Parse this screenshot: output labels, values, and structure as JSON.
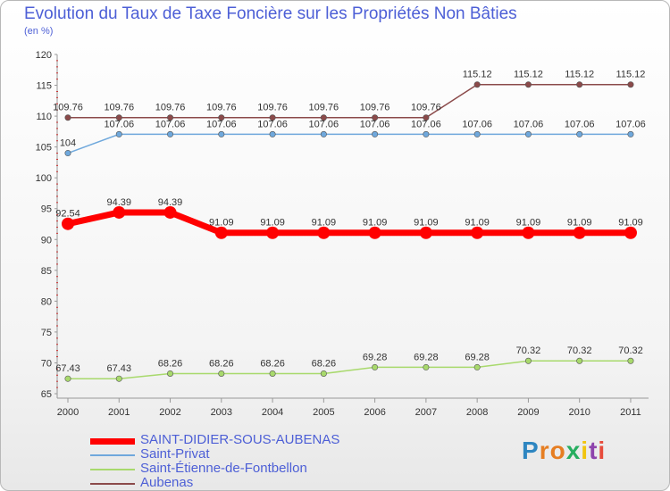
{
  "chart_data": {
    "type": "line",
    "title": "Evolution du Taux de Taxe Foncière sur les Propriétés Non Bâties",
    "ylabel": "(en %)",
    "xlabel": "",
    "categories": [
      "2000",
      "2001",
      "2002",
      "2003",
      "2004",
      "2005",
      "2006",
      "2007",
      "2008",
      "2009",
      "2010",
      "2011"
    ],
    "ylim": [
      65,
      120
    ],
    "yticks": [
      65,
      70,
      75,
      80,
      85,
      90,
      95,
      100,
      105,
      110,
      115,
      120
    ],
    "series": [
      {
        "name": "SAINT-DIDIER-SOUS-AUBENAS",
        "color": "#ff0000",
        "values": [
          92.54,
          94.39,
          94.39,
          91.09,
          91.09,
          91.09,
          91.09,
          91.09,
          91.09,
          91.09,
          91.09,
          91.09
        ],
        "labels": [
          "92.54",
          "94.39",
          "94.39",
          "91.09",
          "91.09",
          "91.09",
          "91.09",
          "91.09",
          "91.09",
          "91.09",
          "91.09",
          "91.09"
        ]
      },
      {
        "name": "Saint-Privat",
        "color": "#6fa8dc",
        "values": [
          104,
          107.06,
          107.06,
          107.06,
          107.06,
          107.06,
          107.06,
          107.06,
          107.06,
          107.06,
          107.06,
          107.06
        ],
        "labels": [
          "104",
          "107.06",
          "107.06",
          "107.06",
          "107.06",
          "107.06",
          "107.06",
          "107.06",
          "107.06",
          "107.06",
          "107.06",
          "107.06"
        ]
      },
      {
        "name": "Saint-Étienne-de-Fontbellon",
        "color": "#a8d96c",
        "values": [
          67.43,
          67.43,
          68.26,
          68.26,
          68.26,
          68.26,
          69.28,
          69.28,
          69.28,
          70.32,
          70.32,
          70.32
        ],
        "labels": [
          "67.43",
          "67.43",
          "68.26",
          "68.26",
          "68.26",
          "68.26",
          "69.28",
          "69.28",
          "69.28",
          "70.32",
          "70.32",
          "70.32"
        ]
      },
      {
        "name": "Aubenas",
        "color": "#8b4a4a",
        "values": [
          109.76,
          109.76,
          109.76,
          109.76,
          109.76,
          109.76,
          109.76,
          109.76,
          115.12,
          115.12,
          115.12,
          115.12
        ],
        "labels": [
          "109.76",
          "109.76",
          "109.76",
          "109.76",
          "109.76",
          "109.76",
          "109.76",
          "109.76",
          "115.12",
          "115.12",
          "115.12",
          "115.12"
        ]
      }
    ],
    "legend_position": "bottom-left",
    "grid": false
  },
  "logo": {
    "text": "Proxiti",
    "letters": [
      "P",
      "r",
      "o",
      "x",
      "i",
      "t",
      "i"
    ],
    "colors": [
      "#2e86c1",
      "#e67e22",
      "#e67e22",
      "#27ae60",
      "#f1c40f",
      "#8e44ad",
      "#e74c3c"
    ]
  }
}
